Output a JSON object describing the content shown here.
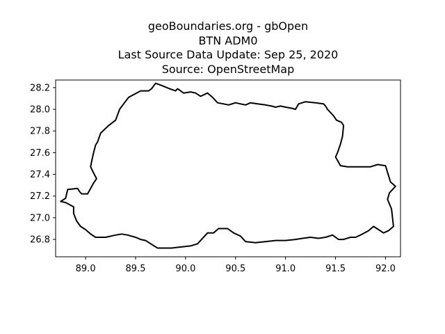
{
  "title": {
    "lines": [
      "geoBoundaries.org - gbOpen",
      "BTN ADM0",
      "Last Source Data Update: Sep 25, 2020",
      "Source: OpenStreetMap"
    ]
  },
  "map": {
    "region_code": "BTN",
    "outline_color": "#000000",
    "background_color": "#ffffff",
    "xlim": [
      88.7,
      92.15
    ],
    "ylim": [
      26.64,
      28.27
    ],
    "x_ticks": [
      {
        "value": 89.0,
        "label": "89.0"
      },
      {
        "value": 89.5,
        "label": "89.5"
      },
      {
        "value": 90.0,
        "label": "90.0"
      },
      {
        "value": 90.5,
        "label": "90.5"
      },
      {
        "value": 91.0,
        "label": "91.0"
      },
      {
        "value": 91.5,
        "label": "91.5"
      },
      {
        "value": 92.0,
        "label": "92.0"
      }
    ],
    "y_ticks": [
      {
        "value": 26.8,
        "label": "26.8"
      },
      {
        "value": 27.0,
        "label": "27.0"
      },
      {
        "value": 27.2,
        "label": "27.2"
      },
      {
        "value": 27.4,
        "label": "27.4"
      },
      {
        "value": 27.6,
        "label": "27.6"
      },
      {
        "value": 27.8,
        "label": "27.8"
      },
      {
        "value": 28.0,
        "label": "28.0"
      },
      {
        "value": 28.2,
        "label": "28.2"
      }
    ],
    "boundary": [
      [
        88.75,
        27.15
      ],
      [
        88.8,
        27.18
      ],
      [
        88.82,
        27.26
      ],
      [
        88.92,
        27.27
      ],
      [
        88.94,
        27.24
      ],
      [
        88.96,
        27.22
      ],
      [
        89.02,
        27.22
      ],
      [
        89.08,
        27.32
      ],
      [
        89.11,
        27.36
      ],
      [
        89.07,
        27.43
      ],
      [
        89.05,
        27.47
      ],
      [
        89.06,
        27.52
      ],
      [
        89.08,
        27.6
      ],
      [
        89.1,
        27.67
      ],
      [
        89.12,
        27.7
      ],
      [
        89.15,
        27.78
      ],
      [
        89.23,
        27.85
      ],
      [
        89.3,
        27.9
      ],
      [
        89.34,
        28.0
      ],
      [
        89.38,
        28.05
      ],
      [
        89.43,
        28.11
      ],
      [
        89.55,
        28.17
      ],
      [
        89.63,
        28.17
      ],
      [
        89.66,
        28.19
      ],
      [
        89.7,
        28.24
      ],
      [
        89.76,
        28.22
      ],
      [
        89.84,
        28.19
      ],
      [
        89.9,
        28.17
      ],
      [
        89.92,
        28.19
      ],
      [
        89.98,
        28.15
      ],
      [
        90.05,
        28.16
      ],
      [
        90.1,
        28.15
      ],
      [
        90.15,
        28.12
      ],
      [
        90.22,
        28.15
      ],
      [
        90.27,
        28.11
      ],
      [
        90.32,
        28.06
      ],
      [
        90.38,
        28.05
      ],
      [
        90.43,
        28.04
      ],
      [
        90.5,
        28.06
      ],
      [
        90.55,
        28.05
      ],
      [
        90.6,
        28.04
      ],
      [
        90.65,
        28.06
      ],
      [
        90.72,
        28.05
      ],
      [
        90.8,
        28.04
      ],
      [
        90.86,
        28.03
      ],
      [
        90.9,
        28.02
      ],
      [
        90.95,
        28.03
      ],
      [
        91.0,
        28.02
      ],
      [
        91.06,
        28.01
      ],
      [
        91.1,
        28.0
      ],
      [
        91.13,
        28.05
      ],
      [
        91.2,
        28.07
      ],
      [
        91.3,
        28.06
      ],
      [
        91.38,
        28.05
      ],
      [
        91.4,
        28.03
      ],
      [
        91.42,
        28.0
      ],
      [
        91.48,
        27.94
      ],
      [
        91.51,
        27.9
      ],
      [
        91.56,
        27.88
      ],
      [
        91.58,
        27.85
      ],
      [
        91.57,
        27.75
      ],
      [
        91.55,
        27.68
      ],
      [
        91.52,
        27.6
      ],
      [
        91.5,
        27.56
      ],
      [
        91.55,
        27.48
      ],
      [
        91.62,
        27.47
      ],
      [
        91.7,
        27.47
      ],
      [
        91.78,
        27.47
      ],
      [
        91.85,
        27.47
      ],
      [
        91.92,
        27.49
      ],
      [
        92.0,
        27.48
      ],
      [
        92.05,
        27.33
      ],
      [
        92.1,
        27.29
      ],
      [
        92.04,
        27.23
      ],
      [
        92.02,
        27.17
      ],
      [
        92.06,
        27.08
      ],
      [
        92.07,
        27.0
      ],
      [
        92.08,
        26.92
      ],
      [
        92.03,
        26.88
      ],
      [
        91.98,
        26.86
      ],
      [
        91.93,
        26.89
      ],
      [
        91.88,
        26.92
      ],
      [
        91.83,
        26.88
      ],
      [
        91.75,
        26.84
      ],
      [
        91.7,
        26.82
      ],
      [
        91.65,
        26.82
      ],
      [
        91.58,
        26.8
      ],
      [
        91.53,
        26.8
      ],
      [
        91.47,
        26.84
      ],
      [
        91.4,
        26.82
      ],
      [
        91.33,
        26.81
      ],
      [
        91.25,
        26.82
      ],
      [
        91.17,
        26.81
      ],
      [
        91.1,
        26.8
      ],
      [
        91.0,
        26.79
      ],
      [
        90.9,
        26.79
      ],
      [
        90.8,
        26.78
      ],
      [
        90.7,
        26.77
      ],
      [
        90.6,
        26.78
      ],
      [
        90.55,
        26.83
      ],
      [
        90.48,
        26.86
      ],
      [
        90.42,
        26.9
      ],
      [
        90.33,
        26.9
      ],
      [
        90.28,
        26.86
      ],
      [
        90.22,
        26.86
      ],
      [
        90.12,
        26.76
      ],
      [
        90.05,
        26.74
      ],
      [
        89.95,
        26.73
      ],
      [
        89.86,
        26.72
      ],
      [
        89.8,
        26.72
      ],
      [
        89.72,
        26.72
      ],
      [
        89.65,
        26.76
      ],
      [
        89.6,
        26.79
      ],
      [
        89.55,
        26.8
      ],
      [
        89.5,
        26.82
      ],
      [
        89.42,
        26.84
      ],
      [
        89.36,
        26.85
      ],
      [
        89.3,
        26.84
      ],
      [
        89.2,
        26.82
      ],
      [
        89.1,
        26.82
      ],
      [
        89.05,
        26.85
      ],
      [
        89.0,
        26.89
      ],
      [
        88.95,
        26.92
      ],
      [
        88.91,
        26.97
      ],
      [
        88.88,
        27.04
      ],
      [
        88.88,
        27.1
      ],
      [
        88.8,
        27.14
      ],
      [
        88.75,
        27.15
      ]
    ]
  }
}
